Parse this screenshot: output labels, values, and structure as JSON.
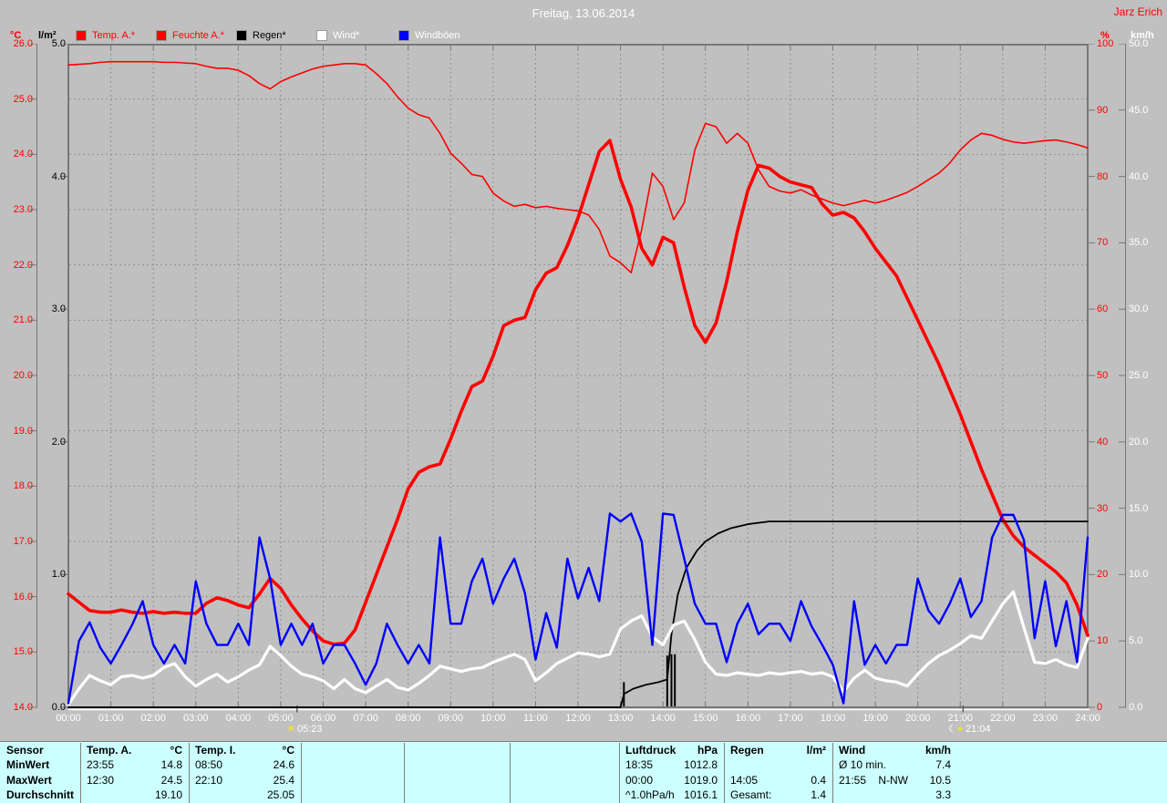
{
  "header": {
    "title": "Freitag, 13.06.2014",
    "author": "Jarz Erich"
  },
  "legend": {
    "unit_c": "°C",
    "unit_lm2": "l/m²",
    "unit_pct": "%",
    "unit_kmh": "km/h",
    "items": [
      {
        "label": "Temp. A.*",
        "swatch": "#ff0000",
        "text_color": "#ff0000"
      },
      {
        "label": "Feuchte A.*",
        "swatch": "#ff0000",
        "text_color": "#ff0000"
      },
      {
        "label": "Regen*",
        "swatch": "#000000",
        "text_color": "#000000"
      },
      {
        "label": "Wind*",
        "swatch": "#ffffff",
        "text_color": "#ffffff"
      },
      {
        "label": "Windböen",
        "swatch": "#0000ff",
        "text_color": "#ffffff"
      }
    ]
  },
  "sun": {
    "sunrise": "05:23",
    "sunset": "21:04"
  },
  "colors": {
    "background": "#c0c0c0",
    "grid": "#909090",
    "border": "#787878",
    "highlight": "#ffffff",
    "table_bg": "#ccffff",
    "temp": "#ff0000",
    "humidity": "#ff0000",
    "rain": "#000000",
    "wind": "#ffffff",
    "gusts": "#0000ff",
    "axis_c_labels": "#ff0000",
    "axis_lm2_labels": "#000000",
    "axis_pct_labels": "#ff0000",
    "axis_kmh_labels": "#ffffff"
  },
  "chart_data": {
    "type": "line",
    "title": "Freitag, 13.06.2014",
    "x_axis": {
      "range_hours": [
        0,
        24
      ],
      "ticks": [
        "00:00",
        "01:00",
        "02:00",
        "03:00",
        "04:00",
        "05:00",
        "06:00",
        "07:00",
        "08:00",
        "09:00",
        "10:00",
        "11:00",
        "12:00",
        "13:00",
        "14:00",
        "15:00",
        "16:00",
        "17:00",
        "18:00",
        "19:00",
        "20:00",
        "21:00",
        "22:00",
        "23:00",
        "24:00"
      ]
    },
    "y_axes": [
      {
        "id": "temp",
        "unit": "°C",
        "range": [
          14,
          26
        ],
        "side": "left",
        "tick_labels": [
          "26.0",
          "25.0",
          "24.0",
          "23.0",
          "22.0",
          "21.0",
          "20.0",
          "19.0",
          "18.0",
          "17.0",
          "16.0",
          "15.0",
          "14.0"
        ]
      },
      {
        "id": "rain",
        "unit": "l/m²",
        "range": [
          0,
          5
        ],
        "side": "left",
        "tick_labels": [
          "5.0",
          "4.0",
          "3.0",
          "2.0",
          "1.0",
          "0.0"
        ]
      },
      {
        "id": "humidity",
        "unit": "%",
        "range": [
          0,
          100
        ],
        "side": "right",
        "tick_labels": [
          "100",
          "90",
          "80",
          "70",
          "60",
          "50",
          "40",
          "30",
          "20",
          "10",
          "0"
        ]
      },
      {
        "id": "wind",
        "unit": "km/h",
        "range": [
          0,
          50
        ],
        "side": "right",
        "tick_labels": [
          "50.0",
          "45.0",
          "40.0",
          "35.0",
          "30.0",
          "25.0",
          "20.0",
          "15.0",
          "10.0",
          "5.0",
          "0.0"
        ]
      }
    ],
    "grid": {
      "horizontal_every_c": 1,
      "vertical_every_hours": 1,
      "style": "dashed"
    },
    "sample_interval_minutes": 15,
    "series": [
      {
        "name": "Temp. A.*",
        "axis": "temp",
        "color": "#ff0000",
        "width": 3.6,
        "values": [
          16.05,
          15.9,
          15.75,
          15.72,
          15.72,
          15.76,
          15.72,
          15.7,
          15.73,
          15.7,
          15.72,
          15.7,
          15.7,
          15.88,
          15.98,
          15.93,
          15.85,
          15.8,
          16.05,
          16.33,
          16.15,
          15.85,
          15.6,
          15.38,
          15.2,
          15.14,
          15.16,
          15.4,
          15.9,
          16.4,
          16.9,
          17.4,
          17.95,
          18.25,
          18.35,
          18.4,
          18.85,
          19.35,
          19.8,
          19.9,
          20.35,
          20.9,
          21.0,
          21.05,
          21.55,
          21.85,
          21.95,
          22.35,
          22.85,
          23.45,
          24.05,
          24.25,
          23.55,
          23.05,
          22.3,
          22.0,
          22.5,
          22.4,
          21.6,
          20.9,
          20.6,
          20.95,
          21.7,
          22.6,
          23.35,
          23.8,
          23.75,
          23.6,
          23.5,
          23.45,
          23.4,
          23.1,
          22.9,
          22.95,
          22.85,
          22.6,
          22.3,
          22.05,
          21.8,
          21.4,
          21.0,
          20.6,
          20.2,
          19.75,
          19.3,
          18.8,
          18.3,
          17.85,
          17.4,
          17.1,
          16.9,
          16.75,
          16.6,
          16.45,
          16.25,
          15.85,
          15.3
        ]
      },
      {
        "name": "Feuchte A.*",
        "axis": "humidity",
        "color": "#ff0000",
        "width": 1.6,
        "values": [
          96.8,
          96.9,
          97.0,
          97.2,
          97.3,
          97.3,
          97.3,
          97.3,
          97.3,
          97.2,
          97.2,
          97.1,
          97.0,
          96.6,
          96.3,
          96.3,
          96.0,
          95.2,
          94.0,
          93.2,
          94.3,
          95.0,
          95.6,
          96.2,
          96.6,
          96.8,
          97.0,
          97.0,
          96.8,
          95.5,
          94.0,
          92.0,
          90.3,
          89.3,
          88.8,
          86.5,
          83.5,
          82.0,
          80.3,
          80.0,
          77.5,
          76.3,
          75.5,
          75.8,
          75.3,
          75.5,
          75.2,
          75.0,
          74.8,
          74.2,
          72.0,
          68.0,
          67.0,
          65.5,
          72.0,
          80.5,
          78.5,
          73.5,
          76.0,
          84.0,
          88.0,
          87.5,
          85.0,
          86.5,
          85.0,
          81.0,
          78.5,
          77.8,
          77.5,
          78.0,
          77.2,
          76.6,
          76.0,
          75.6,
          76.0,
          76.4,
          76.0,
          76.4,
          77.0,
          77.6,
          78.5,
          79.5,
          80.5,
          82.0,
          84.0,
          85.5,
          86.5,
          86.2,
          85.6,
          85.2,
          85.0,
          85.2,
          85.4,
          85.5,
          85.2,
          84.8,
          84.3
        ]
      },
      {
        "name": "Wind*",
        "axis": "wind",
        "color": "#ffffff",
        "width": 3.2,
        "values": [
          0.2,
          1.4,
          2.4,
          2.0,
          1.7,
          2.3,
          2.4,
          2.2,
          2.4,
          3.0,
          3.3,
          2.3,
          1.6,
          2.1,
          2.5,
          1.9,
          2.3,
          2.8,
          3.2,
          4.6,
          3.9,
          3.1,
          2.5,
          2.3,
          2.0,
          1.4,
          2.1,
          1.4,
          1.1,
          1.6,
          2.1,
          1.5,
          1.3,
          1.8,
          2.4,
          3.1,
          2.9,
          2.7,
          2.9,
          3.0,
          3.4,
          3.7,
          4.0,
          3.6,
          2.0,
          2.6,
          3.3,
          3.7,
          4.1,
          4.0,
          3.8,
          4.0,
          5.9,
          6.5,
          6.9,
          5.3,
          4.7,
          6.2,
          6.5,
          5.1,
          3.4,
          2.5,
          2.4,
          2.6,
          2.5,
          2.4,
          2.6,
          2.5,
          2.6,
          2.7,
          2.5,
          2.6,
          2.3,
          1.2,
          2.2,
          2.8,
          2.2,
          2.0,
          1.9,
          1.6,
          2.5,
          3.3,
          3.9,
          4.3,
          4.8,
          5.4,
          5.2,
          6.5,
          7.8,
          8.7,
          6.0,
          3.4,
          3.3,
          3.6,
          3.2,
          3.0,
          5.2
        ]
      },
      {
        "name": "Windböen",
        "axis": "wind",
        "color": "#0000ff",
        "width": 2.4,
        "values": [
          0.3,
          5.0,
          6.4,
          4.5,
          3.3,
          4.7,
          6.2,
          8.0,
          4.7,
          3.3,
          4.7,
          3.3,
          9.5,
          6.3,
          4.7,
          4.7,
          6.3,
          4.7,
          12.8,
          9.7,
          4.7,
          6.3,
          4.7,
          6.3,
          3.3,
          4.7,
          4.7,
          3.3,
          1.7,
          3.3,
          6.3,
          4.7,
          3.3,
          4.7,
          3.3,
          12.8,
          6.3,
          6.3,
          9.5,
          11.2,
          7.8,
          9.7,
          11.2,
          8.6,
          3.6,
          7.1,
          4.5,
          11.2,
          8.2,
          10.5,
          8.0,
          14.6,
          14.0,
          14.6,
          12.5,
          4.7,
          14.6,
          14.5,
          11.2,
          7.8,
          6.3,
          6.3,
          3.4,
          6.3,
          7.8,
          5.5,
          6.3,
          6.3,
          5.0,
          8.0,
          6.1,
          4.7,
          3.2,
          0.3,
          8.0,
          3.2,
          4.7,
          3.3,
          4.7,
          4.7,
          9.7,
          7.3,
          6.3,
          7.8,
          9.7,
          6.8,
          8.0,
          12.8,
          14.5,
          14.5,
          12.6,
          5.2,
          9.5,
          4.6,
          8.0,
          3.4,
          12.8
        ]
      }
    ],
    "rain_cumulative": {
      "name": "Regen*",
      "axis": "rain",
      "color": "#000000",
      "width": 1.8,
      "points": [
        [
          0,
          0
        ],
        [
          13.0,
          0
        ],
        [
          13.08,
          0.1
        ],
        [
          13.3,
          0.14
        ],
        [
          13.6,
          0.17
        ],
        [
          13.9,
          0.19
        ],
        [
          14.1,
          0.21
        ],
        [
          14.2,
          0.55
        ],
        [
          14.35,
          0.85
        ],
        [
          14.55,
          1.05
        ],
        [
          14.8,
          1.18
        ],
        [
          15.0,
          1.25
        ],
        [
          15.3,
          1.31
        ],
        [
          15.6,
          1.35
        ],
        [
          16.0,
          1.38
        ],
        [
          16.5,
          1.4
        ],
        [
          24,
          1.4
        ]
      ]
    },
    "rain_bars": [
      [
        13.08,
        0.19
      ],
      [
        14.1,
        0.39
      ],
      [
        14.2,
        0.4
      ],
      [
        14.28,
        0.4
      ]
    ]
  },
  "table": {
    "row_labels": [
      "Sensor",
      "MinWert",
      "MaxWert",
      "Durchschnitt"
    ],
    "sections": [
      {
        "name": "temp-a",
        "header": [
          "Temp. A.",
          "°C"
        ],
        "rows": [
          [
            "23:55",
            "",
            "14.8"
          ],
          [
            "12:30",
            "",
            "24.5"
          ],
          [
            "",
            "",
            "19.10"
          ]
        ]
      },
      {
        "name": "temp-i",
        "header": [
          "Temp. I.",
          "°C"
        ],
        "rows": [
          [
            "08:50",
            "",
            "24.6"
          ],
          [
            "22:10",
            "",
            "25.4"
          ],
          [
            "",
            "",
            "25.05"
          ]
        ]
      },
      {
        "name": "empty-1",
        "header": [
          "",
          ""
        ],
        "rows": [
          [
            "",
            "",
            ""
          ],
          [
            "",
            "",
            ""
          ],
          [
            "",
            "",
            ""
          ]
        ]
      },
      {
        "name": "empty-2",
        "header": [
          "",
          ""
        ],
        "rows": [
          [
            "",
            "",
            ""
          ],
          [
            "",
            "",
            ""
          ],
          [
            "",
            "",
            ""
          ]
        ]
      },
      {
        "name": "empty-3",
        "header": [
          "",
          ""
        ],
        "rows": [
          [
            "",
            "",
            ""
          ],
          [
            "",
            "",
            ""
          ],
          [
            "",
            "",
            ""
          ]
        ]
      },
      {
        "name": "luftdruck",
        "header": [
          "Luftdruck",
          "hPa"
        ],
        "rows": [
          [
            "18:35",
            "",
            "1012.8"
          ],
          [
            "00:00",
            "",
            "1019.0"
          ],
          [
            "^1.0hPa/h",
            "",
            "1016.1"
          ]
        ]
      },
      {
        "name": "regen",
        "header": [
          "Regen",
          "l/m²"
        ],
        "rows": [
          [
            "",
            "",
            ""
          ],
          [
            "14:05",
            "",
            "0.4"
          ],
          [
            "Gesamt:",
            "",
            "1.4"
          ]
        ]
      },
      {
        "name": "wind",
        "header": [
          "Wind",
          "km/h"
        ],
        "rows": [
          [
            "Ø 10 min.",
            "",
            "7.4"
          ],
          [
            "21:55",
            "N-NW",
            "10.5"
          ],
          [
            "",
            "",
            "3.3"
          ]
        ]
      }
    ]
  }
}
